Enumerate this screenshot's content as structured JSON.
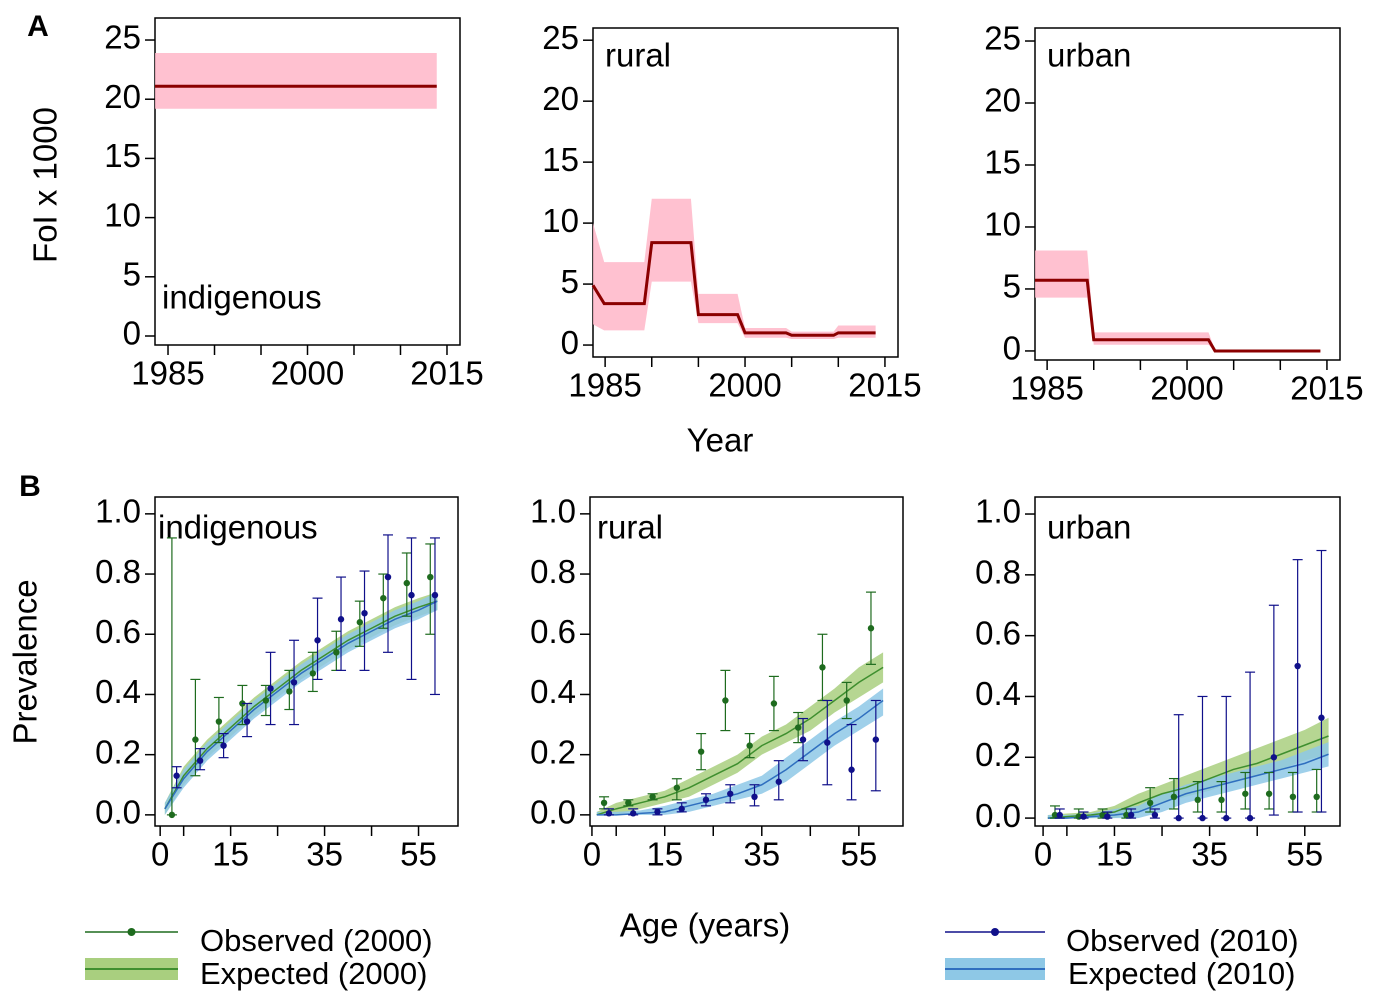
{
  "chart_data": [
    {
      "type": "line",
      "panel": "A",
      "label": "indigenous",
      "ylabel": "FoI x 1000",
      "xlim": [
        1983.6,
        2016.4
      ],
      "ylim": [
        -0.76,
        26.86
      ],
      "xticks": [
        1985,
        2000,
        2015
      ],
      "xminor": [
        1990,
        1995,
        2005,
        2010
      ],
      "yticks": [
        0,
        5,
        10,
        15,
        20,
        25
      ],
      "series": [
        {
          "type": "line",
          "color": "#8b0000",
          "band_color": "#ffb6c8",
          "x": [
            1983.6,
            2013.9
          ],
          "values": [
            21.1,
            21.1
          ],
          "lower": [
            19.2,
            19.2
          ],
          "upper": [
            23.9,
            23.9
          ]
        }
      ]
    },
    {
      "type": "line",
      "label": "rural",
      "xlabel": "Year",
      "xlim": [
        1983.7,
        2016.4
      ],
      "ylim": [
        -0.98,
        26.0
      ],
      "xticks": [
        1985,
        2000,
        2015
      ],
      "xminor": [
        1990,
        1995,
        2005,
        2010
      ],
      "yticks": [
        0,
        5,
        10,
        15,
        20,
        25
      ],
      "series": [
        {
          "type": "line",
          "color": "#8b0000",
          "band_color": "#ffb6c8",
          "x": [
            1983.7,
            1984.9,
            1989.2,
            1990,
            1994.2,
            1995,
            1999.2,
            2000,
            2004.4,
            2005,
            2009.5,
            2010,
            2014
          ],
          "values": [
            4.9,
            3.4,
            3.4,
            8.4,
            8.4,
            2.5,
            2.5,
            1.0,
            1.0,
            0.8,
            0.8,
            1.0,
            1.0
          ],
          "lower": [
            1.7,
            1.2,
            1.2,
            5.2,
            5.2,
            1.8,
            1.8,
            0.6,
            0.6,
            0.5,
            0.5,
            0.6,
            0.6
          ],
          "upper": [
            10,
            6.8,
            6.8,
            12,
            12,
            4.2,
            4.2,
            1.4,
            1.4,
            1.1,
            1.1,
            1.6,
            1.6
          ]
        }
      ]
    },
    {
      "type": "line",
      "label": "urban",
      "xlim": [
        1983.7,
        2016.4
      ],
      "ylim": [
        -0.73,
        26.05
      ],
      "xticks": [
        1985,
        2000,
        2015
      ],
      "xminor": [
        1990,
        1995,
        2005,
        2010
      ],
      "yticks": [
        0,
        5,
        10,
        15,
        20,
        25
      ],
      "series": [
        {
          "type": "line",
          "color": "#8b0000",
          "band_color": "#ffb6c8",
          "x": [
            1983.7,
            1989.3,
            1990,
            2002.3,
            2003,
            2014.3
          ],
          "values": [
            5.7,
            5.7,
            0.9,
            0.9,
            0.0,
            0.0
          ],
          "lower": [
            4.3,
            4.3,
            0.5,
            0.5,
            0.0,
            0.0
          ],
          "upper": [
            8.1,
            8.1,
            1.5,
            1.5,
            0.1,
            0.1
          ]
        }
      ]
    },
    {
      "type": "line",
      "panel": "B",
      "label": "indigenous",
      "ylabel": "Prevalence",
      "xlim": [
        -1.1,
        63.4
      ],
      "ylim": [
        -0.037,
        1.056
      ],
      "xticks": [
        0,
        15,
        35,
        55
      ],
      "xminor": [
        5,
        25,
        45
      ],
      "yticks": [
        {
          "value": 0,
          "label": "0.0"
        },
        0.2,
        0.4,
        0.6,
        0.8,
        {
          "value": 1,
          "label": "1.0"
        }
      ],
      "series": [
        {
          "type": "errorbar",
          "name": "Observed (2000)",
          "color": "#1e6b1e",
          "x": [
            2.5,
            7.5,
            12.5,
            17.5,
            22.5,
            27.5,
            32.5,
            37.5,
            42.5,
            47.5,
            52.5,
            57.5
          ],
          "values": [
            0.0,
            0.25,
            0.31,
            0.37,
            0.38,
            0.41,
            0.47,
            0.54,
            0.64,
            0.72,
            0.77,
            0.79
          ],
          "lower": [
            0.0,
            0.13,
            0.24,
            0.3,
            0.33,
            0.35,
            0.41,
            0.48,
            0.56,
            0.62,
            0.66,
            0.6
          ],
          "upper": [
            0.92,
            0.45,
            0.39,
            0.43,
            0.43,
            0.48,
            0.54,
            0.61,
            0.71,
            0.8,
            0.87,
            0.9
          ]
        },
        {
          "type": "line",
          "name": "Expected (2000)",
          "color": "#3f8f2f",
          "band_color": "#a9cf7f",
          "x": [
            1,
            5,
            10,
            15,
            20,
            25,
            30,
            35,
            40,
            45,
            50,
            55,
            59
          ],
          "values": [
            0.02,
            0.13,
            0.22,
            0.29,
            0.36,
            0.42,
            0.48,
            0.53,
            0.58,
            0.62,
            0.66,
            0.69,
            0.71
          ],
          "lower": [
            0.0,
            0.1,
            0.19,
            0.26,
            0.33,
            0.39,
            0.45,
            0.5,
            0.55,
            0.59,
            0.63,
            0.66,
            0.68
          ],
          "upper": [
            0.04,
            0.16,
            0.25,
            0.32,
            0.39,
            0.45,
            0.51,
            0.56,
            0.61,
            0.65,
            0.69,
            0.72,
            0.74
          ]
        },
        {
          "type": "errorbar",
          "name": "Observed (2010)",
          "color": "#10108a",
          "x": [
            3.5,
            8.5,
            13.5,
            18.5,
            23.5,
            28.5,
            33.5,
            38.5,
            43.5,
            48.5,
            53.5,
            58.5
          ],
          "values": [
            0.13,
            0.18,
            0.23,
            0.31,
            0.42,
            0.44,
            0.58,
            0.65,
            0.67,
            0.79,
            0.73,
            0.73
          ],
          "lower": [
            0.09,
            0.15,
            0.19,
            0.26,
            0.3,
            0.3,
            0.45,
            0.48,
            0.48,
            0.54,
            0.45,
            0.4
          ],
          "upper": [
            0.16,
            0.22,
            0.27,
            0.37,
            0.54,
            0.58,
            0.72,
            0.79,
            0.81,
            0.93,
            0.92,
            0.92
          ]
        },
        {
          "type": "line",
          "name": "Expected (2010)",
          "color": "#2f6fbf",
          "band_color": "#8ec8e6",
          "x": [
            1,
            5,
            10,
            15,
            20,
            25,
            30,
            35,
            40,
            45,
            50,
            55,
            59
          ],
          "values": [
            0.02,
            0.12,
            0.21,
            0.28,
            0.35,
            0.41,
            0.47,
            0.52,
            0.57,
            0.61,
            0.65,
            0.68,
            0.71
          ],
          "lower": [
            0.0,
            0.09,
            0.18,
            0.25,
            0.32,
            0.38,
            0.44,
            0.49,
            0.54,
            0.58,
            0.62,
            0.65,
            0.68
          ],
          "upper": [
            0.04,
            0.15,
            0.24,
            0.31,
            0.38,
            0.44,
            0.5,
            0.55,
            0.6,
            0.64,
            0.68,
            0.71,
            0.74
          ]
        }
      ]
    },
    {
      "type": "line",
      "label": "rural",
      "xlabel": "Age (years)",
      "xlim": [
        -0.4,
        64.1
      ],
      "ylim": [
        -0.037,
        1.056
      ],
      "xticks": [
        0,
        15,
        35,
        55
      ],
      "xminor": [
        5,
        25,
        45
      ],
      "yticks": [
        {
          "value": 0,
          "label": "0.0"
        },
        0.2,
        0.4,
        0.6,
        0.8,
        {
          "value": 1,
          "label": "1.0"
        }
      ],
      "series": [
        {
          "type": "errorbar",
          "color": "#1e6b1e",
          "x": [
            2.5,
            7.5,
            12.5,
            17.5,
            22.5,
            27.5,
            32.5,
            37.5,
            42.5,
            47.5,
            52.5,
            57.5
          ],
          "values": [
            0.04,
            0.04,
            0.06,
            0.09,
            0.21,
            0.38,
            0.23,
            0.37,
            0.29,
            0.49,
            0.38,
            0.62
          ],
          "lower": [
            0.02,
            0.03,
            0.05,
            0.05,
            0.15,
            0.28,
            0.19,
            0.28,
            0.24,
            0.38,
            0.32,
            0.5
          ],
          "upper": [
            0.06,
            0.05,
            0.07,
            0.12,
            0.27,
            0.48,
            0.27,
            0.46,
            0.34,
            0.6,
            0.44,
            0.74
          ]
        },
        {
          "type": "line",
          "color": "#3f8f2f",
          "band_color": "#a9cf7f",
          "x": [
            1,
            5,
            10,
            15,
            20,
            25,
            30,
            35,
            40,
            45,
            50,
            55,
            60
          ],
          "values": [
            0.0,
            0.02,
            0.04,
            0.06,
            0.09,
            0.13,
            0.17,
            0.23,
            0.27,
            0.32,
            0.38,
            0.44,
            0.49
          ],
          "lower": [
            0.0,
            0.0,
            0.02,
            0.04,
            0.06,
            0.1,
            0.14,
            0.2,
            0.24,
            0.28,
            0.34,
            0.39,
            0.44
          ],
          "upper": [
            0.01,
            0.04,
            0.06,
            0.08,
            0.12,
            0.16,
            0.2,
            0.26,
            0.3,
            0.36,
            0.42,
            0.49,
            0.54
          ]
        },
        {
          "type": "errorbar",
          "color": "#10108a",
          "x": [
            3.5,
            8.5,
            13.5,
            18.5,
            23.5,
            28.5,
            33.5,
            38.5,
            43.5,
            48.5,
            53.5,
            58.5
          ],
          "values": [
            0.005,
            0.005,
            0.01,
            0.02,
            0.05,
            0.07,
            0.06,
            0.11,
            0.25,
            0.24,
            0.15,
            0.25
          ],
          "lower": [
            0.0,
            0.0,
            0.0,
            0.01,
            0.03,
            0.04,
            0.03,
            0.05,
            0.18,
            0.1,
            0.05,
            0.08
          ],
          "upper": [
            0.02,
            0.02,
            0.02,
            0.04,
            0.07,
            0.1,
            0.1,
            0.18,
            0.32,
            0.38,
            0.3,
            0.38
          ]
        },
        {
          "type": "line",
          "color": "#2f6fbf",
          "band_color": "#8ec8e6",
          "x": [
            1,
            5,
            10,
            15,
            20,
            25,
            30,
            35,
            40,
            45,
            50,
            55,
            60
          ],
          "values": [
            0.0,
            0.0,
            0.005,
            0.01,
            0.03,
            0.05,
            0.07,
            0.1,
            0.15,
            0.21,
            0.27,
            0.32,
            0.38
          ],
          "lower": [
            0.0,
            0.0,
            0.0,
            0.0,
            0.01,
            0.03,
            0.05,
            0.07,
            0.11,
            0.17,
            0.23,
            0.28,
            0.33
          ],
          "upper": [
            0.01,
            0.01,
            0.015,
            0.03,
            0.05,
            0.07,
            0.1,
            0.13,
            0.19,
            0.25,
            0.31,
            0.36,
            0.42
          ]
        }
      ]
    },
    {
      "type": "line",
      "label": "urban",
      "xlim": [
        -1.7,
        62.4
      ],
      "ylim": [
        -0.026,
        1.056
      ],
      "xticks": [
        0,
        15,
        35,
        55
      ],
      "xminor": [
        5,
        25,
        45
      ],
      "yticks": [
        {
          "value": 0,
          "label": "0.0"
        },
        0.2,
        0.4,
        0.6,
        0.8,
        {
          "value": 1,
          "label": "1.0"
        }
      ],
      "series": [
        {
          "type": "errorbar",
          "color": "#1e6b1e",
          "x": [
            2.5,
            7.5,
            12.5,
            17.5,
            22.5,
            27.5,
            32.5,
            37.5,
            42.5,
            47.5,
            52.5,
            57.5
          ],
          "values": [
            0.01,
            0.005,
            0.01,
            0.01,
            0.05,
            0.07,
            0.06,
            0.06,
            0.08,
            0.08,
            0.07,
            0.07
          ],
          "lower": [
            0.0,
            0.0,
            0.0,
            0.0,
            0.02,
            0.03,
            0.02,
            0.02,
            0.03,
            0.03,
            0.02,
            0.02
          ],
          "upper": [
            0.04,
            0.03,
            0.03,
            0.03,
            0.1,
            0.13,
            0.12,
            0.12,
            0.15,
            0.15,
            0.15,
            0.16
          ]
        },
        {
          "type": "line",
          "color": "#3f8f2f",
          "band_color": "#a9cf7f",
          "x": [
            1,
            5,
            10,
            15,
            20,
            25,
            30,
            35,
            40,
            45,
            50,
            55,
            60
          ],
          "values": [
            0.0,
            0.005,
            0.01,
            0.02,
            0.05,
            0.08,
            0.1,
            0.13,
            0.16,
            0.18,
            0.21,
            0.24,
            0.27
          ],
          "lower": [
            0.0,
            0.0,
            0.0,
            0.0,
            0.02,
            0.05,
            0.07,
            0.09,
            0.12,
            0.14,
            0.16,
            0.19,
            0.21
          ],
          "upper": [
            0.01,
            0.015,
            0.02,
            0.04,
            0.08,
            0.11,
            0.14,
            0.17,
            0.2,
            0.23,
            0.26,
            0.29,
            0.33
          ]
        },
        {
          "type": "errorbar",
          "color": "#10108a",
          "x": [
            3.5,
            8.5,
            13.5,
            18.5,
            23.5,
            28.5,
            33.5,
            38.5,
            43.5,
            48.5,
            53.5,
            58.5
          ],
          "values": [
            0.01,
            0.005,
            0.005,
            0.01,
            0.01,
            0.0,
            0.0,
            0.0,
            0.0,
            0.2,
            0.5,
            0.33
          ],
          "lower": [
            0.0,
            0.0,
            0.0,
            0.0,
            0.0,
            0.0,
            0.0,
            0.0,
            0.0,
            0.01,
            0.02,
            0.02
          ],
          "upper": [
            0.03,
            0.02,
            0.02,
            0.03,
            0.03,
            0.34,
            0.4,
            0.4,
            0.48,
            0.7,
            0.85,
            0.88
          ]
        },
        {
          "type": "line",
          "color": "#2f6fbf",
          "band_color": "#8ec8e6",
          "x": [
            1,
            5,
            10,
            15,
            20,
            25,
            30,
            35,
            40,
            45,
            50,
            55,
            60
          ],
          "values": [
            0.0,
            0.0,
            0.005,
            0.01,
            0.02,
            0.05,
            0.08,
            0.1,
            0.12,
            0.14,
            0.16,
            0.18,
            0.21
          ],
          "lower": [
            0.0,
            0.0,
            0.0,
            0.0,
            0.0,
            0.02,
            0.05,
            0.07,
            0.09,
            0.11,
            0.13,
            0.15,
            0.17
          ],
          "upper": [
            0.01,
            0.01,
            0.015,
            0.03,
            0.04,
            0.08,
            0.11,
            0.13,
            0.15,
            0.17,
            0.19,
            0.22,
            0.25
          ]
        }
      ]
    }
  ]
}
